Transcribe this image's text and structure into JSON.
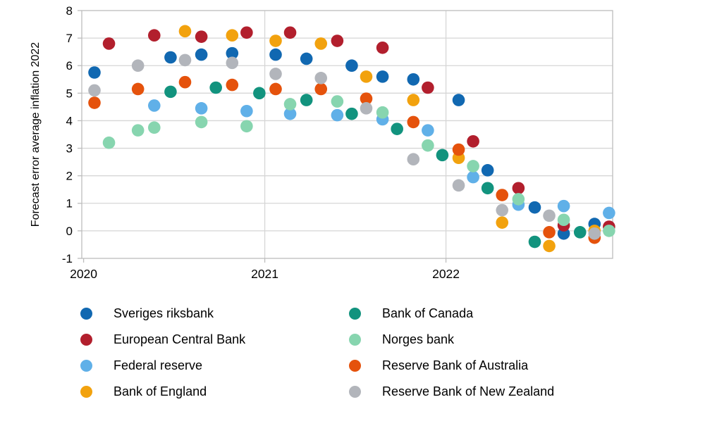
{
  "chart_data": {
    "type": "scatter",
    "title": "",
    "xlabel": "",
    "ylabel": "Forecast error average inflation 2022",
    "x_range": [
      2019.99,
      2022.92
    ],
    "y_range": [
      -1,
      8
    ],
    "y_ticks": [
      8,
      7,
      6,
      5,
      4,
      3,
      2,
      1,
      0,
      -1
    ],
    "x_ticks": [
      {
        "value": 2020,
        "label": "2020"
      },
      {
        "value": 2021,
        "label": "2021"
      },
      {
        "value": 2022,
        "label": "2022"
      }
    ],
    "grid": true,
    "legend_position": "bottom-two-columns",
    "marker_diameter_px": 17.6,
    "series": [
      {
        "name": "Sveriges riksbank",
        "color": "#1168b1",
        "points": [
          [
            2020.06,
            5.75
          ],
          [
            2020.48,
            6.3
          ],
          [
            2020.65,
            6.4
          ],
          [
            2020.82,
            6.45
          ],
          [
            2021.06,
            6.4
          ],
          [
            2021.23,
            6.25
          ],
          [
            2021.48,
            6.0
          ],
          [
            2021.65,
            5.6
          ],
          [
            2021.82,
            5.5
          ],
          [
            2022.07,
            4.75
          ],
          [
            2022.23,
            2.2
          ],
          [
            2022.49,
            0.85
          ],
          [
            2022.65,
            -0.1
          ],
          [
            2022.82,
            0.25
          ]
        ]
      },
      {
        "name": "European Central Bank",
        "color": "#b21f2d",
        "points": [
          [
            2020.14,
            6.8
          ],
          [
            2020.39,
            7.1
          ],
          [
            2020.65,
            7.05
          ],
          [
            2020.9,
            7.2
          ],
          [
            2021.14,
            7.2
          ],
          [
            2021.4,
            6.9
          ],
          [
            2021.65,
            6.65
          ],
          [
            2021.9,
            5.2
          ],
          [
            2022.15,
            3.25
          ],
          [
            2022.4,
            1.55
          ],
          [
            2022.65,
            0.2
          ],
          [
            2022.9,
            0.15
          ]
        ]
      },
      {
        "name": "Federal reserve",
        "color": "#60b0e8",
        "points": [
          [
            2020.39,
            4.55
          ],
          [
            2020.65,
            4.45
          ],
          [
            2020.9,
            4.35
          ],
          [
            2021.14,
            4.25
          ],
          [
            2021.4,
            4.2
          ],
          [
            2021.65,
            4.05
          ],
          [
            2021.9,
            3.65
          ],
          [
            2022.15,
            1.95
          ],
          [
            2022.4,
            0.95
          ],
          [
            2022.65,
            0.9
          ],
          [
            2022.9,
            0.65
          ]
        ]
      },
      {
        "name": "Bank of England",
        "color": "#f2a20e",
        "points": [
          [
            2020.56,
            7.25
          ],
          [
            2020.82,
            7.1
          ],
          [
            2021.06,
            6.9
          ],
          [
            2021.31,
            6.8
          ],
          [
            2021.56,
            5.6
          ],
          [
            2021.82,
            4.75
          ],
          [
            2022.07,
            2.65
          ],
          [
            2022.31,
            0.3
          ],
          [
            2022.57,
            -0.55
          ],
          [
            2022.82,
            0.0
          ]
        ]
      },
      {
        "name": "Bank of Canada",
        "color": "#12937e",
        "points": [
          [
            2020.48,
            5.05
          ],
          [
            2020.73,
            5.2
          ],
          [
            2020.97,
            5.0
          ],
          [
            2021.23,
            4.75
          ],
          [
            2021.48,
            4.25
          ],
          [
            2021.73,
            3.7
          ],
          [
            2021.98,
            2.75
          ],
          [
            2022.23,
            1.55
          ],
          [
            2022.49,
            -0.4
          ],
          [
            2022.74,
            -0.05
          ]
        ]
      },
      {
        "name": "Norges bank",
        "color": "#87d5af",
        "points": [
          [
            2020.14,
            3.2
          ],
          [
            2020.3,
            3.65
          ],
          [
            2020.39,
            3.75
          ],
          [
            2020.65,
            3.95
          ],
          [
            2020.9,
            3.8
          ],
          [
            2021.14,
            4.6
          ],
          [
            2021.4,
            4.7
          ],
          [
            2021.65,
            4.3
          ],
          [
            2021.9,
            3.1
          ],
          [
            2022.15,
            2.35
          ],
          [
            2022.4,
            1.15
          ],
          [
            2022.65,
            0.4
          ],
          [
            2022.9,
            0.0
          ]
        ]
      },
      {
        "name": "Reserve Bank of Australia",
        "color": "#e5520c",
        "points": [
          [
            2020.06,
            4.65
          ],
          [
            2020.3,
            5.15
          ],
          [
            2020.56,
            5.4
          ],
          [
            2020.82,
            5.3
          ],
          [
            2021.06,
            5.15
          ],
          [
            2021.31,
            5.15
          ],
          [
            2021.56,
            4.8
          ],
          [
            2021.82,
            3.95
          ],
          [
            2022.07,
            2.95
          ],
          [
            2022.31,
            1.3
          ],
          [
            2022.57,
            -0.05
          ],
          [
            2022.82,
            -0.25
          ]
        ]
      },
      {
        "name": "Reserve Bank of New Zealand",
        "color": "#b2b5bb",
        "points": [
          [
            2020.06,
            5.1
          ],
          [
            2020.3,
            6.0
          ],
          [
            2020.56,
            6.2
          ],
          [
            2020.82,
            6.1
          ],
          [
            2021.06,
            5.7
          ],
          [
            2021.31,
            5.55
          ],
          [
            2021.56,
            4.45
          ],
          [
            2021.82,
            2.6
          ],
          [
            2022.07,
            1.65
          ],
          [
            2022.31,
            0.75
          ],
          [
            2022.57,
            0.55
          ],
          [
            2022.82,
            -0.1
          ]
        ]
      }
    ]
  },
  "legend": {
    "columns": [
      [
        "Sveriges riksbank",
        "European Central Bank",
        "Federal reserve",
        "Bank of England"
      ],
      [
        "Bank of Canada",
        "Norges bank",
        "Reserve Bank of Australia",
        "Reserve Bank of New Zealand"
      ]
    ]
  },
  "colors": {
    "background": "#ffffff",
    "grid": "#d6d6d6",
    "plot_border": "#bdbdbd",
    "text": "#000000"
  }
}
